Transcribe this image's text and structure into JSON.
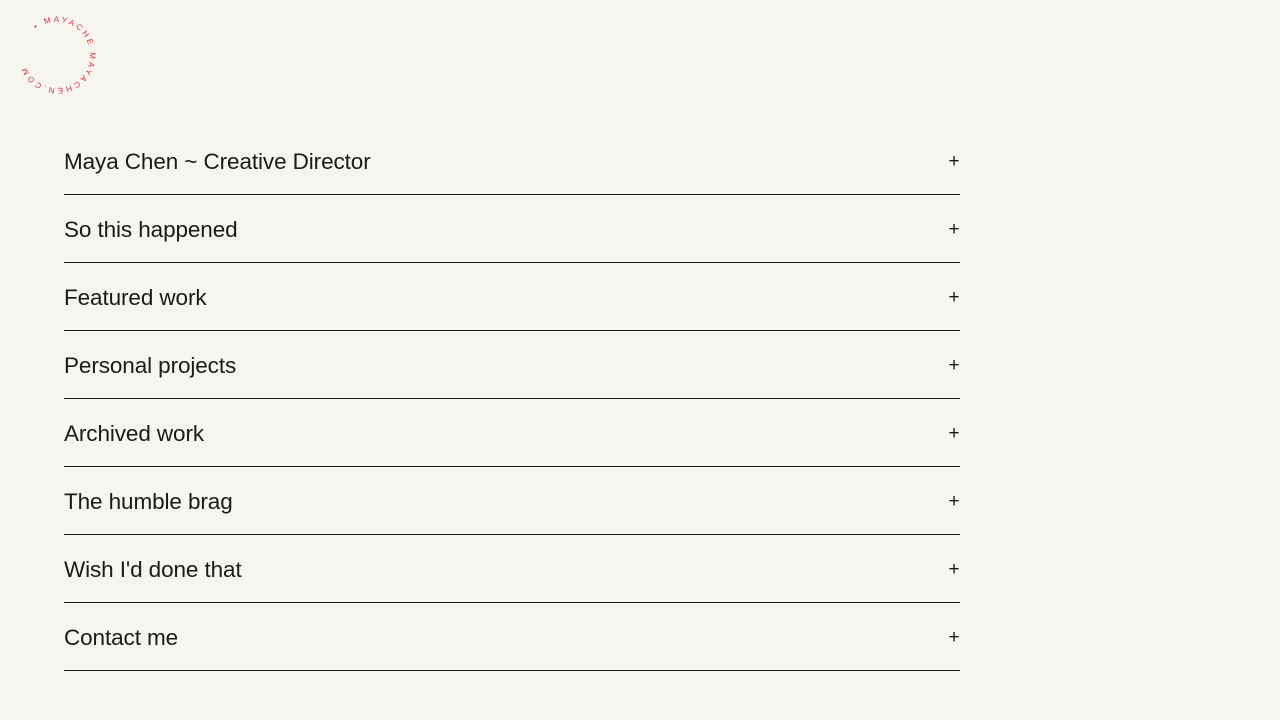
{
  "logo": {
    "text": "• MAYACHE MAYACHEN.COM",
    "color": "#d8323a"
  },
  "accordion": {
    "items": [
      {
        "label": "Maya Chen ~ Creative Director",
        "icon": "plus-icon",
        "toggle": "+"
      },
      {
        "label": "So this happened",
        "icon": "plus-icon",
        "toggle": "+"
      },
      {
        "label": "Featured work",
        "icon": "plus-icon",
        "toggle": "+"
      },
      {
        "label": "Personal projects",
        "icon": "plus-icon",
        "toggle": "+"
      },
      {
        "label": "Archived work",
        "icon": "plus-icon",
        "toggle": "+"
      },
      {
        "label": "The humble brag",
        "icon": "plus-icon",
        "toggle": "+"
      },
      {
        "label": "Wish I'd done that",
        "icon": "plus-icon",
        "toggle": "+"
      },
      {
        "label": "Contact me",
        "icon": "plus-icon",
        "toggle": "+"
      }
    ]
  }
}
